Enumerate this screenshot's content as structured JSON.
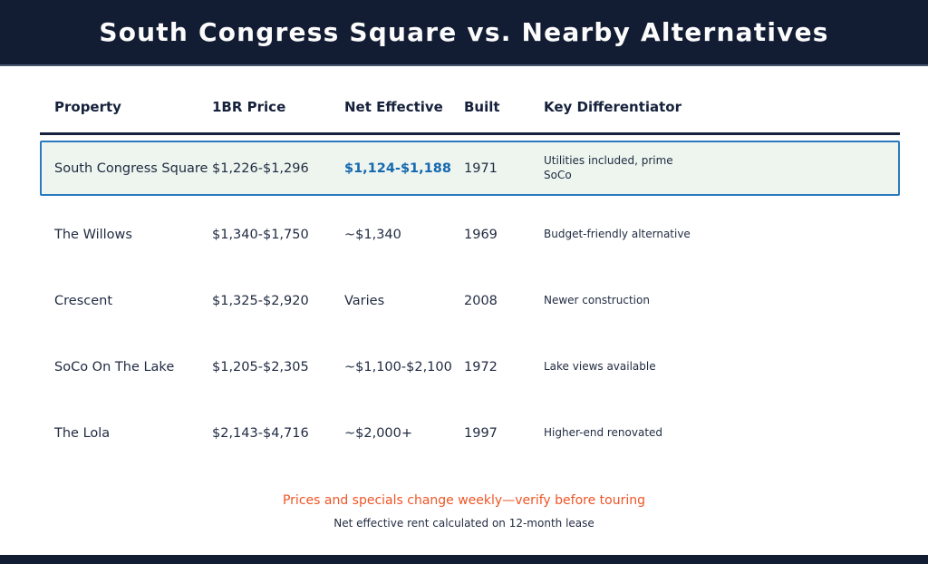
{
  "header": {
    "title": "South Congress Square vs. Nearby Alternatives"
  },
  "chart_data": {
    "type": "table",
    "title": "South Congress Square vs. Nearby Alternatives",
    "columns": [
      "Property",
      "1BR Price",
      "Net Effective",
      "Built",
      "Key Differentiator"
    ],
    "rows": [
      [
        "South Congress Square",
        "$1,226-$1,296",
        "$1,124-$1,188",
        "1971",
        "Utilities included, prime SoCo"
      ],
      [
        "The Willows",
        "$1,340-$1,750",
        "~$1,340",
        "1969",
        "Budget-friendly alternative"
      ],
      [
        "Crescent",
        "$1,325-$2,920",
        "Varies",
        "2008",
        "Newer construction"
      ],
      [
        "SoCo On The Lake",
        "$1,205-$2,305",
        "~$1,100-$2,100",
        "1972",
        "Lake views available"
      ],
      [
        "The Lola",
        "$2,143-$4,716",
        "~$2,000+",
        "1997",
        "Higher-end renovated"
      ]
    ],
    "highlighted_row": 0,
    "layout": {
      "legend_position": "none",
      "grid": false,
      "highlight_style": "first row outlined in blue with mint background; its Net Effective value is bold blue"
    }
  },
  "footer": {
    "warning": "Prices and specials change weekly—verify before touring",
    "note": "Net effective rent calculated on 12-month lease"
  },
  "colors": {
    "header_bg": "#121c33",
    "title_text": "#fcfcfc",
    "body_text": "#1f2a40",
    "table_header_text": "#16213b",
    "accent_blue": "#1668b0",
    "highlight_bg": "#edf5ee",
    "highlight_border": "#2b7abf",
    "warning_orange": "#ee5526"
  }
}
